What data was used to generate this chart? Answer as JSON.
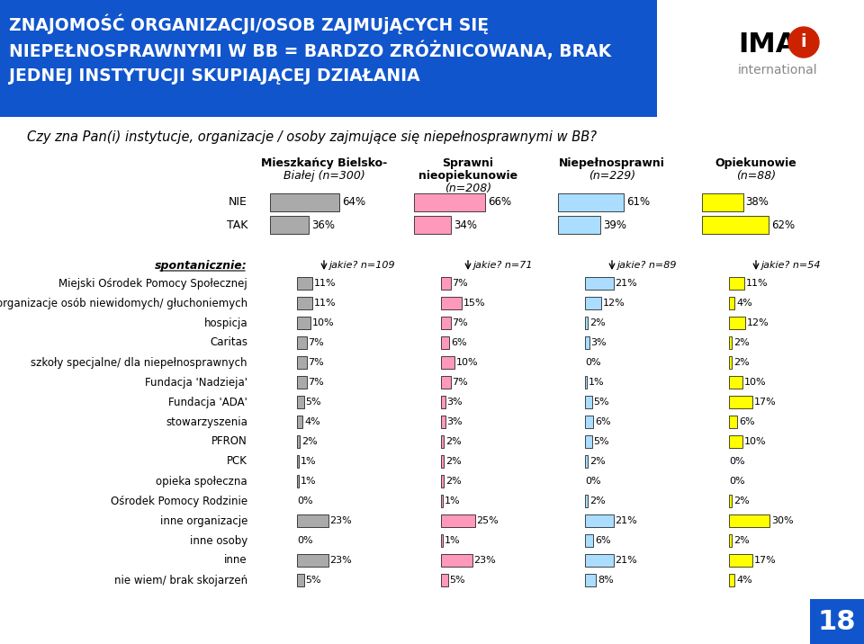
{
  "title_line1": "ZNAJOMOŚĆ ORGANIZACJI/OSOB ZAJMUjĄCYCH SIĘ",
  "title_line2": "NIEPEŁNOSPRAWNYMI W BB = BARDZO ZRÓŻNICOWANA, BRAK",
  "title_line3": "JEDNEJ INSTYTUCJI SKUPIAJĄCEJ DZIAŁANIA",
  "subtitle": "Czy zna Pan(i) instytucje, organizacje / osoby zajmujące się niepełnosprawnymi w BB?",
  "columns": [
    {
      "label": "Mieszkańcy Bielsko-\nBiałej (n=300)",
      "color": "#aaaaaa",
      "nie": 64,
      "tak": 36,
      "jakie_n": 109,
      "values": [
        11,
        11,
        10,
        7,
        7,
        7,
        5,
        4,
        2,
        1,
        1,
        0,
        23,
        0,
        23,
        5
      ]
    },
    {
      "label": "Sprawni\nnieopiekunowie\n(n=208)",
      "color": "#ff99bb",
      "nie": 66,
      "tak": 34,
      "jakie_n": 71,
      "values": [
        7,
        15,
        7,
        6,
        10,
        7,
        3,
        3,
        2,
        2,
        2,
        1,
        25,
        1,
        23,
        5
      ]
    },
    {
      "label": "Niepełnosprawni\n(n=229)",
      "color": "#aaddff",
      "nie": 61,
      "tak": 39,
      "jakie_n": 89,
      "values": [
        21,
        12,
        2,
        3,
        0,
        1,
        5,
        6,
        5,
        2,
        0,
        2,
        21,
        6,
        21,
        8
      ]
    },
    {
      "label": "Opiekunowie\n(n=88)",
      "color": "#ffff00",
      "nie": 38,
      "tak": 62,
      "jakie_n": 54,
      "values": [
        11,
        4,
        12,
        2,
        2,
        10,
        17,
        6,
        10,
        0,
        0,
        2,
        30,
        2,
        17,
        4
      ]
    }
  ],
  "row_labels": [
    "Miejski Ośrodek Pomocy Społecznej",
    "organizacje osób niewidomych/ głuchoniemych",
    "hospicja",
    "Caritas",
    "szkoły specjalne/ dla niepełnosprawnych",
    "Fundacja 'Nadzieja'",
    "Fundacja 'ADA'",
    "stowarzyszenia",
    "PFRON",
    "PCK",
    "opieka społeczna",
    "Ośrodek Pomocy Rodzinie",
    "inne organizacje",
    "inne osoby",
    "inne",
    "nie wiem/ brak skojarzeń"
  ],
  "bg_title_color": "#1155cc",
  "title_text_color": "#ffffff",
  "page_number": "18",
  "page_num_bg": "#1155cc"
}
